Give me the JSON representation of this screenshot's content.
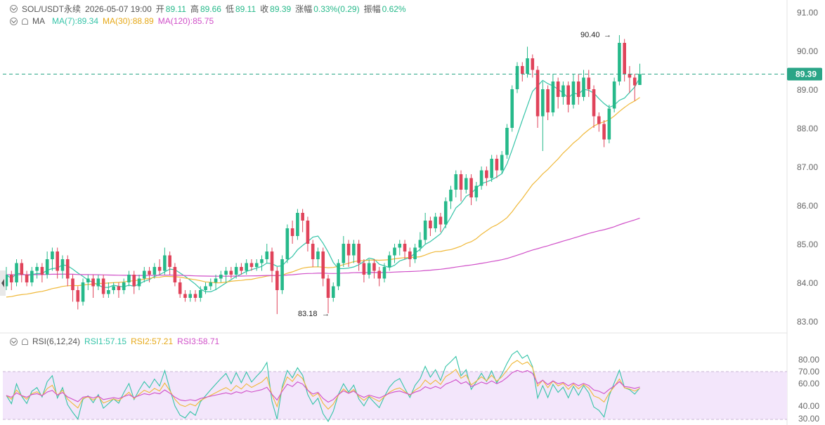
{
  "header": {
    "symbol": "SOL/USDT永续",
    "datetime": "2026-05-07 19:00",
    "open_label": "开",
    "open": "89.11",
    "high_label": "高",
    "high": "89.66",
    "low_label": "低",
    "low": "89.11",
    "close_label": "收",
    "close": "89.39",
    "change_label": "涨幅",
    "change": "0.33%(0.29)",
    "amplitude_label": "振幅",
    "amplitude": "0.62%"
  },
  "ma_legend": {
    "label": "MA",
    "ma7": "MA(7):89.34",
    "ma30": "MA(30):88.89",
    "ma120": "MA(120):85.75"
  },
  "rsi_legend": {
    "label": "RSI(6,12,24)",
    "rsi1": "RSI1:57.15",
    "rsi2": "RSI2:57.21",
    "rsi3": "RSI3:58.71"
  },
  "colors": {
    "up": "#26b98a",
    "down": "#e0435a",
    "ma7": "#35c4a8",
    "ma30": "#f0b93a",
    "ma120": "#d04fc8",
    "rsi1": "#35c4a8",
    "rsi2": "#f0b93a",
    "rsi3": "#d04fc8",
    "rsi_band": "#f3e6fb"
  },
  "chart_data": {
    "type": "candlestick",
    "y_axis": {
      "min": 83.0,
      "max": 91.0,
      "ticks": [
        "91.00",
        "90.00",
        "89.00",
        "88.00",
        "87.00",
        "86.00",
        "85.00",
        "84.00",
        "83.00"
      ]
    },
    "current_price": "89.39",
    "annotations": {
      "high": "90.40",
      "low": "83.18"
    },
    "candles": [
      [
        83.9,
        84.2,
        84.4,
        83.8
      ],
      [
        84.2,
        84.0,
        84.3,
        83.8
      ],
      [
        84.0,
        84.5,
        84.6,
        83.9
      ],
      [
        84.5,
        84.2,
        84.6,
        84.0
      ],
      [
        84.2,
        84.0,
        84.3,
        83.9
      ],
      [
        84.0,
        84.3,
        84.4,
        83.9
      ],
      [
        84.3,
        84.4,
        84.5,
        84.1
      ],
      [
        84.4,
        84.2,
        84.5,
        84.0
      ],
      [
        84.2,
        84.6,
        84.8,
        84.1
      ],
      [
        84.6,
        84.8,
        84.9,
        84.3
      ],
      [
        84.8,
        84.3,
        84.9,
        84.1
      ],
      [
        84.3,
        84.6,
        84.7,
        84.1
      ],
      [
        84.6,
        84.1,
        84.7,
        83.9
      ],
      [
        84.1,
        83.8,
        84.2,
        83.5
      ],
      [
        83.8,
        83.5,
        83.9,
        83.3
      ],
      [
        83.5,
        84.0,
        84.1,
        83.4
      ],
      [
        84.0,
        84.1,
        84.2,
        83.8
      ],
      [
        84.1,
        83.9,
        84.2,
        83.6
      ],
      [
        83.9,
        84.1,
        84.2,
        83.8
      ],
      [
        84.1,
        83.7,
        84.2,
        83.6
      ],
      [
        83.7,
        83.8,
        84.0,
        83.6
      ],
      [
        83.8,
        83.9,
        84.0,
        83.7
      ],
      [
        83.9,
        83.8,
        84.0,
        83.6
      ],
      [
        83.8,
        84.0,
        84.1,
        83.7
      ],
      [
        84.0,
        84.2,
        84.3,
        83.9
      ],
      [
        84.2,
        83.9,
        84.3,
        83.7
      ],
      [
        83.9,
        84.1,
        84.2,
        83.8
      ],
      [
        84.1,
        84.3,
        84.4,
        84.0
      ],
      [
        84.3,
        84.2,
        84.4,
        84.0
      ],
      [
        84.2,
        84.4,
        84.5,
        84.1
      ],
      [
        84.4,
        84.3,
        84.6,
        84.2
      ],
      [
        84.3,
        84.7,
        84.9,
        84.2
      ],
      [
        84.7,
        84.4,
        84.8,
        84.2
      ],
      [
        84.4,
        84.0,
        84.5,
        83.9
      ],
      [
        84.0,
        83.7,
        84.1,
        83.6
      ],
      [
        83.7,
        83.6,
        83.8,
        83.5
      ],
      [
        83.6,
        83.7,
        83.8,
        83.5
      ],
      [
        83.7,
        83.6,
        83.8,
        83.5
      ],
      [
        83.6,
        83.8,
        83.9,
        83.5
      ],
      [
        83.8,
        83.9,
        84.0,
        83.7
      ],
      [
        83.9,
        84.0,
        84.1,
        83.8
      ],
      [
        84.0,
        84.1,
        84.2,
        83.8
      ],
      [
        84.1,
        84.2,
        84.3,
        84.0
      ],
      [
        84.2,
        84.3,
        84.4,
        84.0
      ],
      [
        84.3,
        84.2,
        84.4,
        84.1
      ],
      [
        84.2,
        84.4,
        84.5,
        84.1
      ],
      [
        84.4,
        84.3,
        84.5,
        84.2
      ],
      [
        84.3,
        84.5,
        84.6,
        84.2
      ],
      [
        84.5,
        84.4,
        84.6,
        84.3
      ],
      [
        84.4,
        84.5,
        84.6,
        84.3
      ],
      [
        84.5,
        84.6,
        84.7,
        84.3
      ],
      [
        84.6,
        84.8,
        85.0,
        84.5
      ],
      [
        84.8,
        84.3,
        84.9,
        84.0
      ],
      [
        84.3,
        83.8,
        84.4,
        83.18
      ],
      [
        83.8,
        84.6,
        84.7,
        83.7
      ],
      [
        84.6,
        85.4,
        85.5,
        84.5
      ],
      [
        85.4,
        85.2,
        85.6,
        85.0
      ],
      [
        85.2,
        85.8,
        85.9,
        85.1
      ],
      [
        85.8,
        85.6,
        85.9,
        85.3
      ],
      [
        85.6,
        85.0,
        85.7,
        84.8
      ],
      [
        85.0,
        84.6,
        85.1,
        84.4
      ],
      [
        84.6,
        84.8,
        84.9,
        84.4
      ],
      [
        84.8,
        84.1,
        84.9,
        83.9
      ],
      [
        84.1,
        83.6,
        84.2,
        83.2
      ],
      [
        83.6,
        83.9,
        84.0,
        83.5
      ],
      [
        83.9,
        84.5,
        84.6,
        83.8
      ],
      [
        84.5,
        85.0,
        85.2,
        84.4
      ],
      [
        85.0,
        84.7,
        85.1,
        84.4
      ],
      [
        84.7,
        85.0,
        85.1,
        84.5
      ],
      [
        85.0,
        84.5,
        85.1,
        84.3
      ],
      [
        84.5,
        84.2,
        84.6,
        84.0
      ],
      [
        84.2,
        84.5,
        84.6,
        84.1
      ],
      [
        84.5,
        84.3,
        84.6,
        84.1
      ],
      [
        84.3,
        84.1,
        84.4,
        83.9
      ],
      [
        84.1,
        84.4,
        84.5,
        84.0
      ],
      [
        84.4,
        84.7,
        84.8,
        84.3
      ],
      [
        84.7,
        84.9,
        85.0,
        84.5
      ],
      [
        84.9,
        85.0,
        85.1,
        84.7
      ],
      [
        85.0,
        84.8,
        85.1,
        84.6
      ],
      [
        84.8,
        84.6,
        84.9,
        84.4
      ],
      [
        84.6,
        84.9,
        85.0,
        84.5
      ],
      [
        84.9,
        85.1,
        85.3,
        84.8
      ],
      [
        85.1,
        85.6,
        85.8,
        85.0
      ],
      [
        85.6,
        85.4,
        85.7,
        85.2
      ],
      [
        85.4,
        85.7,
        85.8,
        85.3
      ],
      [
        85.7,
        85.5,
        85.8,
        85.3
      ],
      [
        85.5,
        86.1,
        86.2,
        85.4
      ],
      [
        86.1,
        86.4,
        86.5,
        85.9
      ],
      [
        86.4,
        86.8,
        86.9,
        86.2
      ],
      [
        86.8,
        86.4,
        86.9,
        86.1
      ],
      [
        86.4,
        86.7,
        86.8,
        86.3
      ],
      [
        86.7,
        86.2,
        86.8,
        86.0
      ],
      [
        86.2,
        86.5,
        86.6,
        86.1
      ],
      [
        86.5,
        86.9,
        87.0,
        86.4
      ],
      [
        86.9,
        86.7,
        87.0,
        86.5
      ],
      [
        86.7,
        87.2,
        87.3,
        86.6
      ],
      [
        87.2,
        86.9,
        87.3,
        86.7
      ],
      [
        86.9,
        87.3,
        87.4,
        86.8
      ],
      [
        87.3,
        88.0,
        88.1,
        87.2
      ],
      [
        88.0,
        89.0,
        89.1,
        87.9
      ],
      [
        89.0,
        89.6,
        89.7,
        88.9
      ],
      [
        89.6,
        89.4,
        89.7,
        89.2
      ],
      [
        89.4,
        89.8,
        90.1,
        89.3
      ],
      [
        89.8,
        89.5,
        89.9,
        89.3
      ],
      [
        89.5,
        88.3,
        89.6,
        88.0
      ],
      [
        88.3,
        89.0,
        89.2,
        87.4
      ],
      [
        89.0,
        88.4,
        89.1,
        88.2
      ],
      [
        88.4,
        89.2,
        89.4,
        88.3
      ],
      [
        89.2,
        88.8,
        89.3,
        88.5
      ],
      [
        88.8,
        89.1,
        89.2,
        88.6
      ],
      [
        89.1,
        88.6,
        89.2,
        88.4
      ],
      [
        88.6,
        89.2,
        89.4,
        88.5
      ],
      [
        89.2,
        88.8,
        89.4,
        88.6
      ],
      [
        88.8,
        89.3,
        89.5,
        88.7
      ],
      [
        89.3,
        89.0,
        89.5,
        88.8
      ],
      [
        89.0,
        88.3,
        89.1,
        88.0
      ],
      [
        88.3,
        88.1,
        88.4,
        87.9
      ],
      [
        88.1,
        87.7,
        88.2,
        87.5
      ],
      [
        87.7,
        88.5,
        88.6,
        87.6
      ],
      [
        88.5,
        89.2,
        89.3,
        88.4
      ],
      [
        89.2,
        90.2,
        90.4,
        89.1
      ],
      [
        90.2,
        89.4,
        90.3,
        89.2
      ],
      [
        89.4,
        89.3,
        89.6,
        88.9
      ],
      [
        89.3,
        89.1,
        89.4,
        88.7
      ],
      [
        89.11,
        89.39,
        89.66,
        89.11
      ]
    ]
  }
}
